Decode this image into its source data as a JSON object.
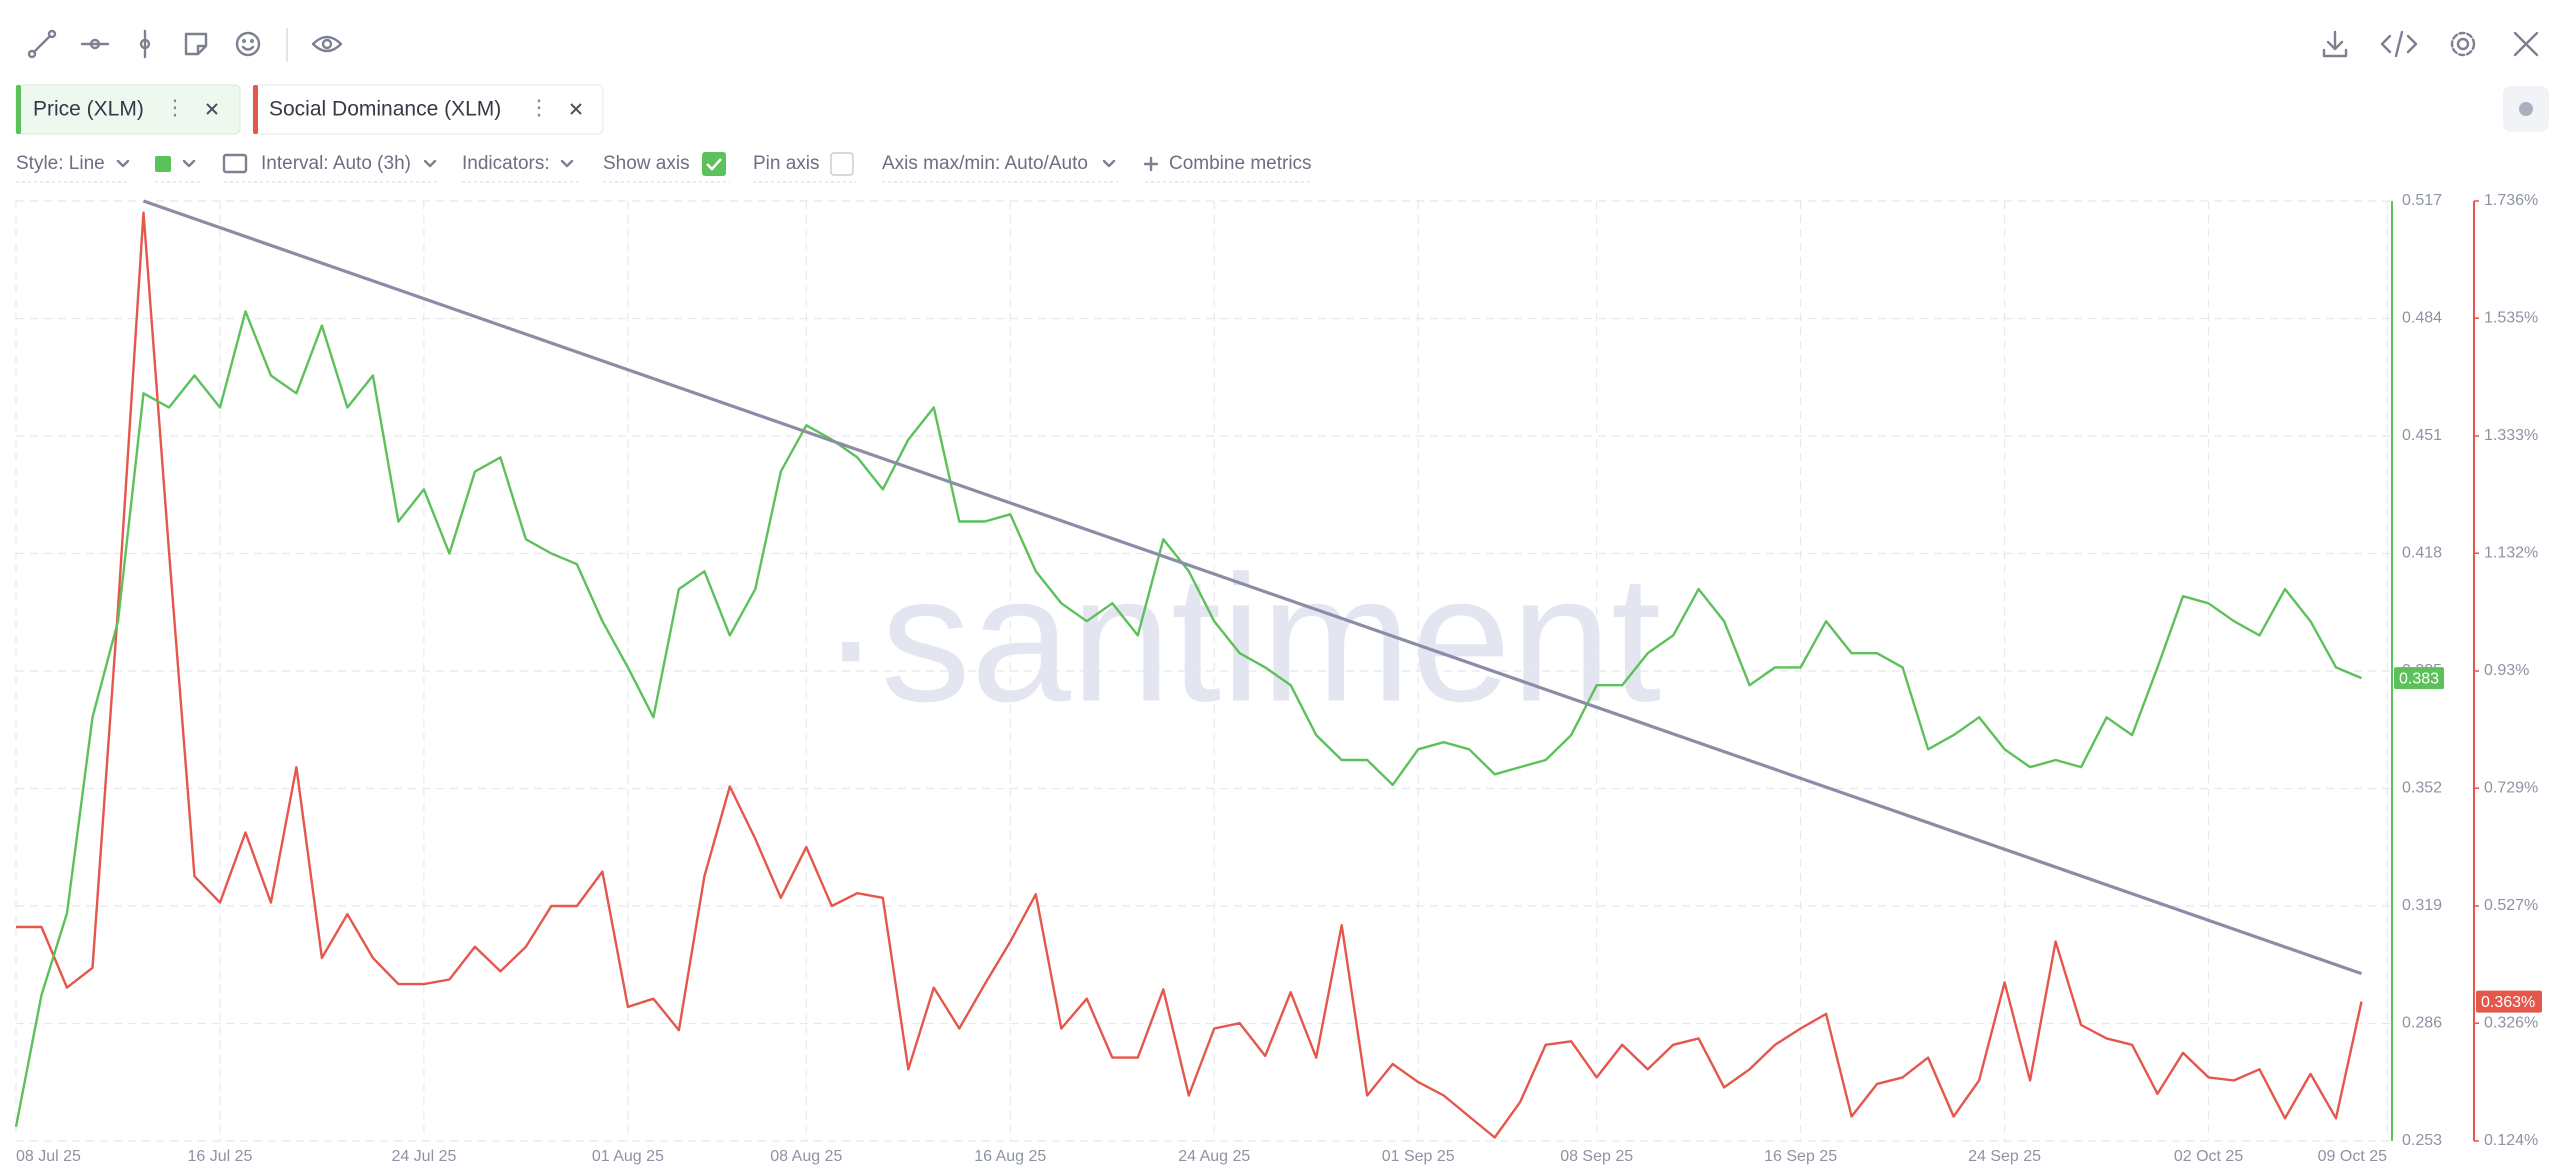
{
  "toolbar": {
    "style": "Style: Line",
    "interval": "Interval: Auto (3h)",
    "indicators": "Indicators:",
    "show_axis": "Show axis",
    "pin_axis": "Pin axis",
    "axis_minmax": "Axis max/min: Auto/Auto",
    "combine": "Combine metrics"
  },
  "chart_data": {
    "type": "line",
    "watermark": "·santiment",
    "grid": true,
    "x": [
      "2025-07-08",
      "2025-07-09",
      "2025-07-10",
      "2025-07-11",
      "2025-07-12",
      "2025-07-13",
      "2025-07-14",
      "2025-07-15",
      "2025-07-16",
      "2025-07-17",
      "2025-07-18",
      "2025-07-19",
      "2025-07-20",
      "2025-07-21",
      "2025-07-22",
      "2025-07-23",
      "2025-07-24",
      "2025-07-25",
      "2025-07-26",
      "2025-07-27",
      "2025-07-28",
      "2025-07-29",
      "2025-07-30",
      "2025-07-31",
      "2025-08-01",
      "2025-08-02",
      "2025-08-03",
      "2025-08-04",
      "2025-08-05",
      "2025-08-06",
      "2025-08-07",
      "2025-08-08",
      "2025-08-09",
      "2025-08-10",
      "2025-08-11",
      "2025-08-12",
      "2025-08-13",
      "2025-08-14",
      "2025-08-15",
      "2025-08-16",
      "2025-08-17",
      "2025-08-18",
      "2025-08-19",
      "2025-08-20",
      "2025-08-21",
      "2025-08-22",
      "2025-08-23",
      "2025-08-24",
      "2025-08-25",
      "2025-08-26",
      "2025-08-27",
      "2025-08-28",
      "2025-08-29",
      "2025-08-30",
      "2025-08-31",
      "2025-09-01",
      "2025-09-02",
      "2025-09-03",
      "2025-09-04",
      "2025-09-05",
      "2025-09-06",
      "2025-09-07",
      "2025-09-08",
      "2025-09-09",
      "2025-09-10",
      "2025-09-11",
      "2025-09-12",
      "2025-09-13",
      "2025-09-14",
      "2025-09-15",
      "2025-09-16",
      "2025-09-17",
      "2025-09-18",
      "2025-09-19",
      "2025-09-20",
      "2025-09-21",
      "2025-09-22",
      "2025-09-23",
      "2025-09-24",
      "2025-09-25",
      "2025-09-26",
      "2025-09-27",
      "2025-09-28",
      "2025-09-29",
      "2025-09-30",
      "2025-10-01",
      "2025-10-02",
      "2025-10-03",
      "2025-10-04",
      "2025-10-05",
      "2025-10-06",
      "2025-10-07",
      "2025-10-08"
    ],
    "xlim": [
      "2025-07-08",
      "2025-10-09"
    ],
    "xticks": [
      {
        "value": "2025-07-08",
        "label": "08 Jul 25"
      },
      {
        "value": "2025-07-16",
        "label": "16 Jul 25"
      },
      {
        "value": "2025-07-24",
        "label": "24 Jul 25"
      },
      {
        "value": "2025-08-01",
        "label": "01 Aug 25"
      },
      {
        "value": "2025-08-08",
        "label": "08 Aug 25"
      },
      {
        "value": "2025-08-16",
        "label": "16 Aug 25"
      },
      {
        "value": "2025-08-24",
        "label": "24 Aug 25"
      },
      {
        "value": "2025-09-01",
        "label": "01 Sep 25"
      },
      {
        "value": "2025-09-08",
        "label": "08 Sep 25"
      },
      {
        "value": "2025-09-16",
        "label": "16 Sep 25"
      },
      {
        "value": "2025-09-24",
        "label": "24 Sep 25"
      },
      {
        "value": "2025-10-02",
        "label": "02 Oct 25"
      },
      {
        "value": "2025-10-09",
        "label": "09 Oct 25"
      }
    ],
    "ylim": [
      0.253,
      0.517
    ],
    "yticks": [
      0.253,
      0.286,
      0.319,
      0.352,
      0.385,
      0.418,
      0.451,
      0.484,
      0.517
    ],
    "y2lim": [
      0.124,
      1.736
    ],
    "y2ticks": [
      {
        "value": 0.124,
        "label": "0.124%"
      },
      {
        "value": 0.326,
        "label": "0.326%"
      },
      {
        "value": 0.527,
        "label": "0.527%"
      },
      {
        "value": 0.729,
        "label": "0.729%"
      },
      {
        "value": 0.93,
        "label": "0.93%"
      },
      {
        "value": 1.132,
        "label": "1.132%"
      },
      {
        "value": 1.333,
        "label": "1.333%"
      },
      {
        "value": 1.535,
        "label": "1.535%"
      },
      {
        "value": 1.736,
        "label": "1.736%"
      }
    ],
    "series": [
      {
        "name": "Price (XLM)",
        "color": "#5cc15a",
        "axis": "y",
        "values": [
          0.257,
          0.294,
          0.317,
          0.372,
          0.399,
          0.463,
          0.459,
          0.468,
          0.459,
          0.486,
          0.468,
          0.463,
          0.482,
          0.459,
          0.468,
          0.427,
          0.436,
          0.418,
          0.441,
          0.445,
          0.422,
          0.418,
          0.415,
          0.399,
          0.386,
          0.372,
          0.408,
          0.413,
          0.395,
          0.408,
          0.441,
          0.454,
          0.45,
          0.445,
          0.436,
          0.45,
          0.459,
          0.427,
          0.427,
          0.429,
          0.413,
          0.404,
          0.399,
          0.404,
          0.395,
          0.422,
          0.413,
          0.399,
          0.39,
          0.386,
          0.381,
          0.367,
          0.36,
          0.36,
          0.353,
          0.363,
          0.365,
          0.363,
          0.356,
          0.358,
          0.36,
          0.367,
          0.381,
          0.381,
          0.39,
          0.395,
          0.408,
          0.399,
          0.381,
          0.386,
          0.386,
          0.399,
          0.39,
          0.39,
          0.386,
          0.363,
          0.367,
          0.372,
          0.363,
          0.358,
          0.36,
          0.358,
          0.372,
          0.367,
          0.386,
          0.406,
          0.404,
          0.399,
          0.395,
          0.408,
          0.399,
          0.386,
          0.383
        ]
      },
      {
        "name": "Social Dominance (XLM)",
        "color": "#e5564b",
        "axis": "y2",
        "values": [
          0.491,
          0.491,
          0.387,
          0.421,
          1.037,
          1.716,
          1.135,
          0.578,
          0.533,
          0.653,
          0.533,
          0.765,
          0.438,
          0.513,
          0.438,
          0.393,
          0.393,
          0.401,
          0.457,
          0.415,
          0.457,
          0.527,
          0.527,
          0.586,
          0.354,
          0.368,
          0.314,
          0.578,
          0.732,
          0.642,
          0.541,
          0.628,
          0.527,
          0.549,
          0.541,
          0.247,
          0.387,
          0.317,
          0.393,
          0.466,
          0.547,
          0.317,
          0.368,
          0.267,
          0.267,
          0.384,
          0.202,
          0.317,
          0.326,
          0.27,
          0.379,
          0.267,
          0.494,
          0.202,
          0.256,
          0.225,
          0.202,
          0.166,
          0.13,
          0.191,
          0.289,
          0.295,
          0.233,
          0.289,
          0.247,
          0.289,
          0.3,
          0.216,
          0.247,
          0.289,
          0.317,
          0.342,
          0.166,
          0.222,
          0.233,
          0.267,
          0.166,
          0.228,
          0.396,
          0.228,
          0.466,
          0.323,
          0.3,
          0.289,
          0.205,
          0.275,
          0.233,
          0.228,
          0.247,
          0.163,
          0.239,
          0.163,
          0.363
        ],
        "value_labels": [
          null,
          null,
          null,
          null,
          null,
          null,
          null,
          null,
          null,
          null,
          null,
          null,
          null,
          null,
          null,
          null,
          null,
          null,
          null,
          null,
          null,
          null,
          null,
          null,
          null,
          null,
          null,
          null,
          null,
          null,
          null,
          null,
          null,
          null,
          null,
          null,
          null,
          null,
          null,
          null,
          null,
          null,
          null,
          null,
          null,
          null,
          null,
          null,
          null,
          null,
          null,
          null,
          null,
          null,
          null,
          null,
          null,
          null,
          null,
          null,
          null,
          null,
          null,
          null,
          null,
          null,
          null,
          null,
          null,
          null,
          null,
          null,
          null,
          null,
          null,
          null,
          null,
          null,
          null,
          null,
          null,
          null,
          null,
          null,
          null,
          null,
          null,
          null,
          null,
          null,
          null,
          null,
          "0.363%"
        ]
      }
    ],
    "trendline": {
      "color": "#8b8ca6",
      "x": [
        "2025-07-13",
        "2025-10-08"
      ],
      "values": [
        0.517,
        0.3
      ]
    }
  }
}
